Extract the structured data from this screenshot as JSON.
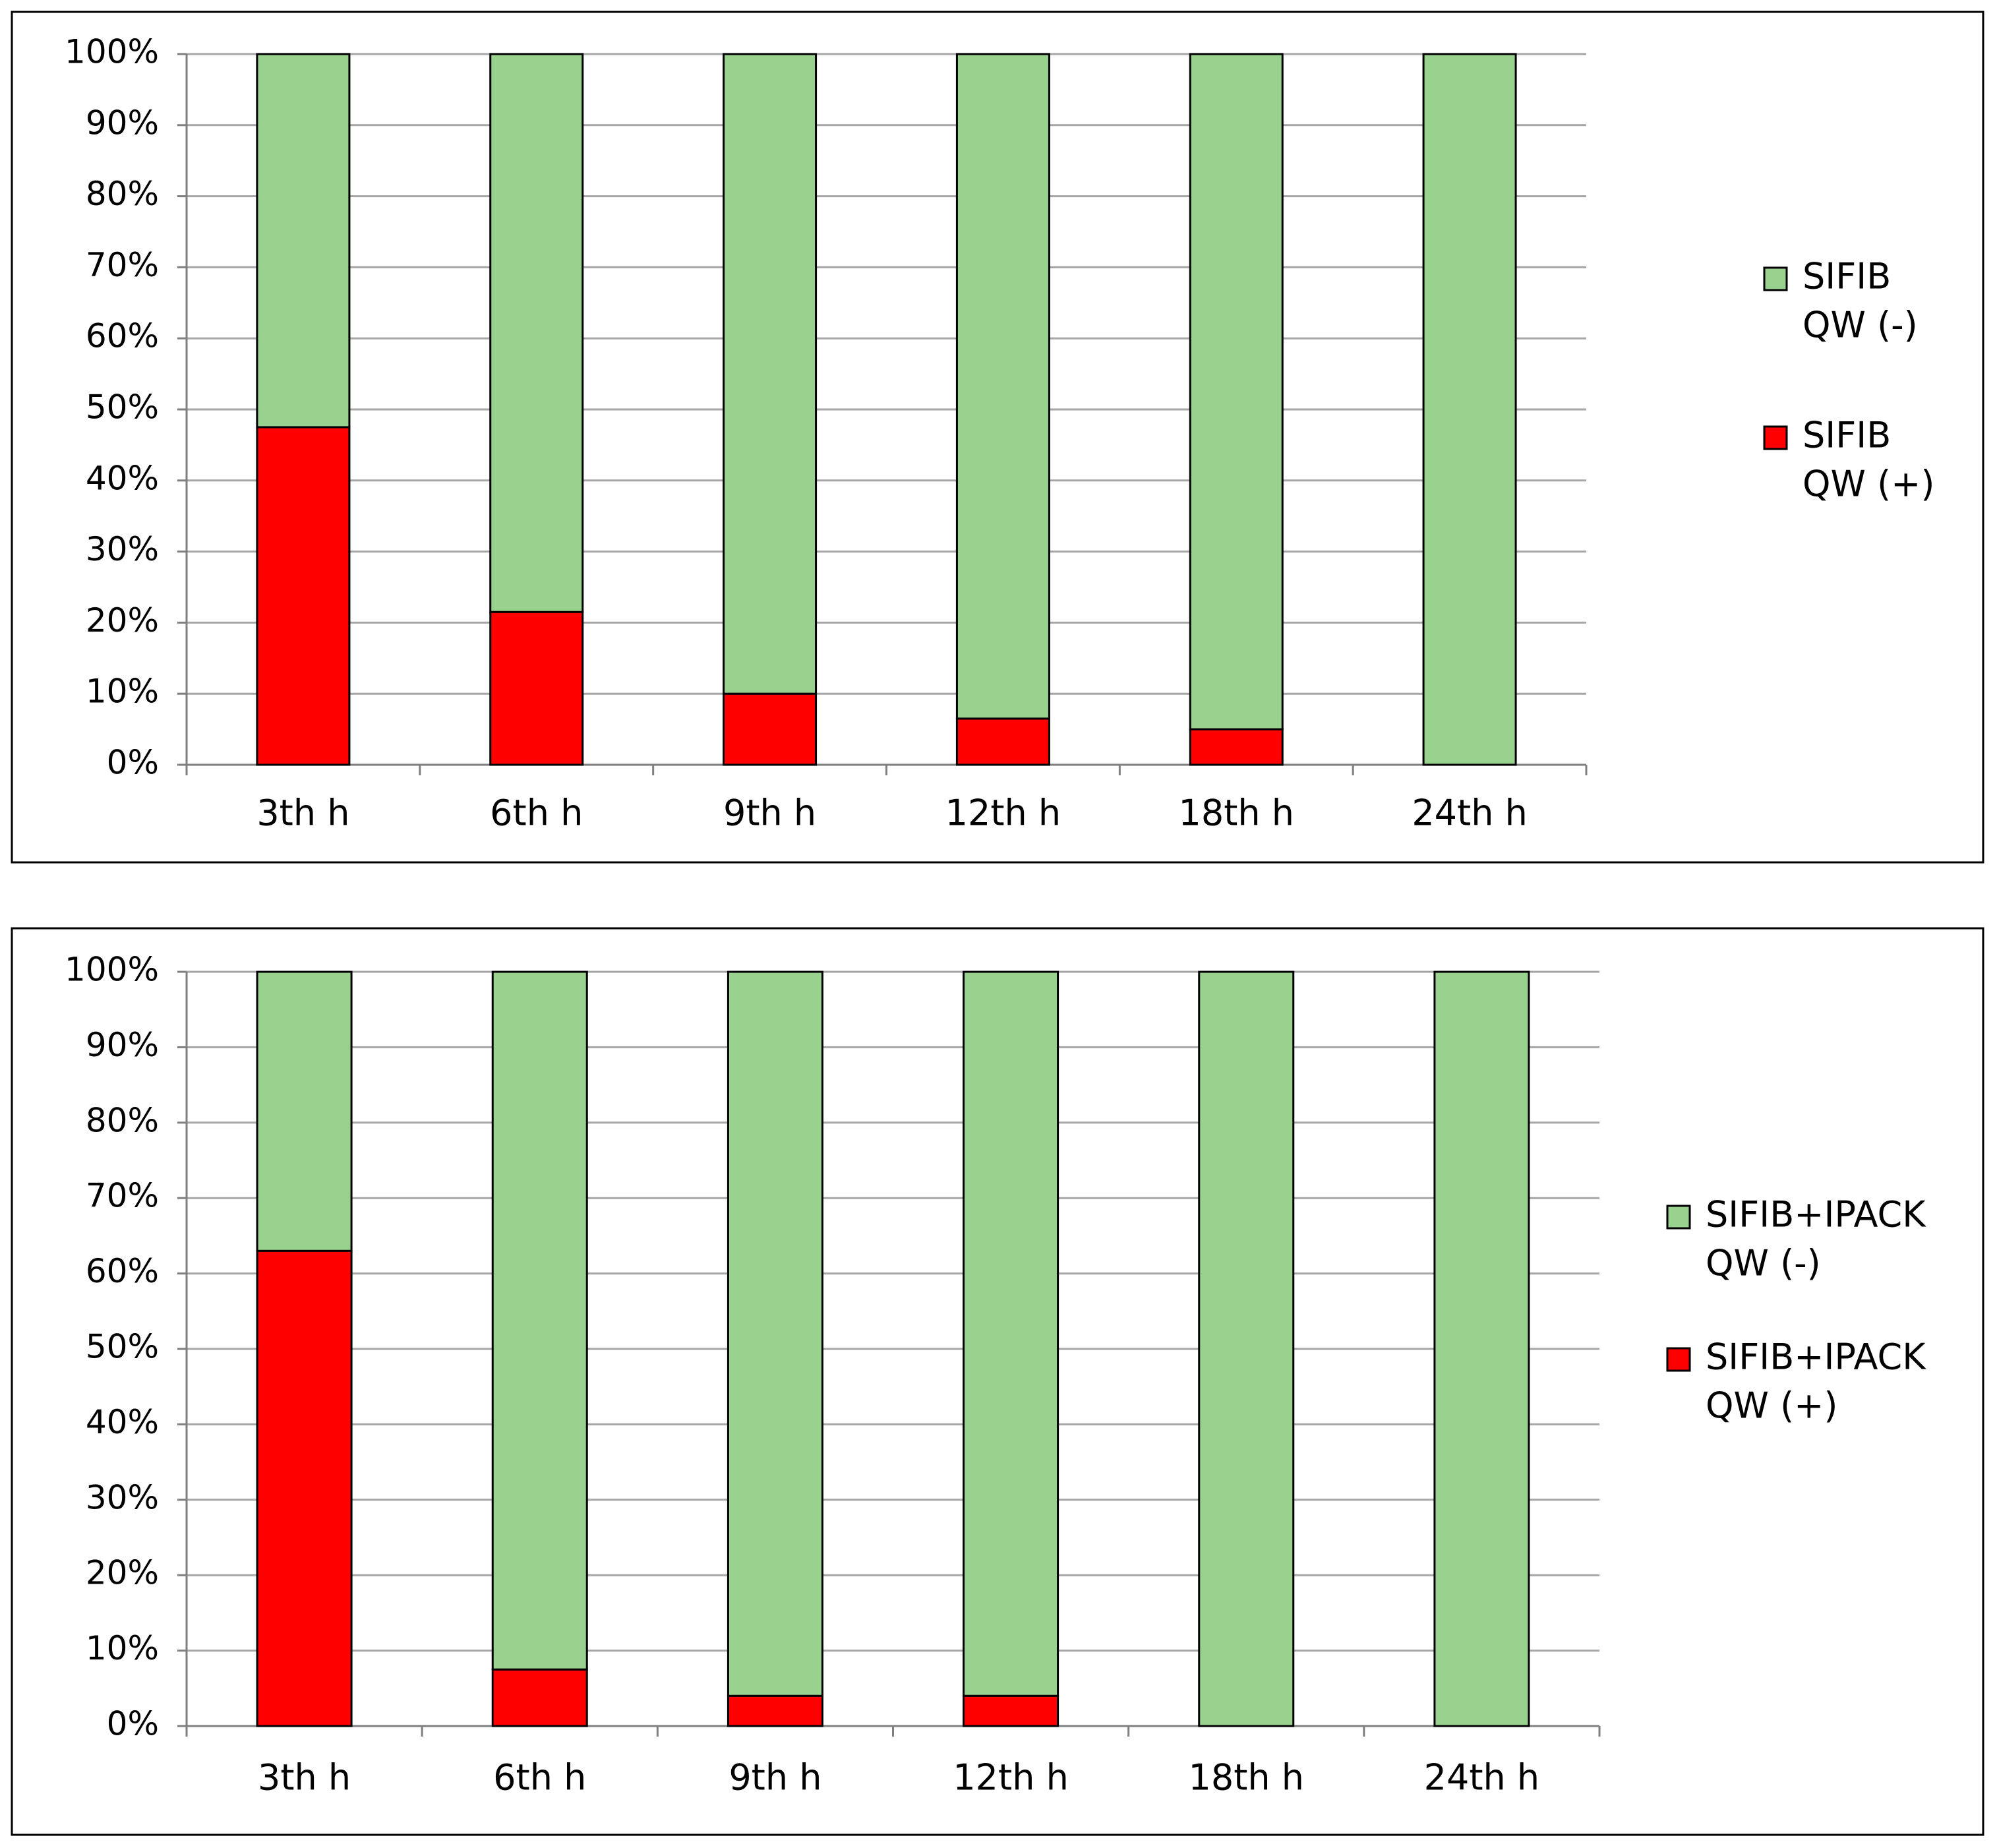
{
  "colors": {
    "negative": "#99d18f",
    "positive": "#ff0000"
  },
  "chart_data": [
    {
      "type": "bar",
      "stacked": true,
      "percent": true,
      "categories": [
        "3th h",
        "6th h",
        "9th h",
        "12th h",
        "18th h",
        "24th h"
      ],
      "yticks": [
        "0%",
        "10%",
        "20%",
        "30%",
        "40%",
        "50%",
        "60%",
        "70%",
        "80%",
        "90%",
        "100%"
      ],
      "ylim": [
        0,
        100
      ],
      "grid": true,
      "legend_position": "right",
      "series": [
        {
          "name": "SIFIB QW (+)",
          "legend_lines": [
            "SIFIB",
            "QW (+)"
          ],
          "color_key": "positive",
          "values": [
            47.5,
            21.5,
            10,
            6.5,
            5,
            0
          ]
        },
        {
          "name": "SIFIB QW (-)",
          "legend_lines": [
            "SIFIB",
            "QW (-)"
          ],
          "color_key": "negative",
          "values": [
            52.5,
            78.5,
            90,
            93.5,
            95,
            100
          ]
        }
      ]
    },
    {
      "type": "bar",
      "stacked": true,
      "percent": true,
      "categories": [
        "3th h",
        "6th h",
        "9th h",
        "12th h",
        "18th h",
        "24th h"
      ],
      "yticks": [
        "0%",
        "10%",
        "20%",
        "30%",
        "40%",
        "50%",
        "60%",
        "70%",
        "80%",
        "90%",
        "100%"
      ],
      "ylim": [
        0,
        100
      ],
      "grid": true,
      "legend_position": "right",
      "series": [
        {
          "name": "SIFIB+IPACK QW (+)",
          "legend_lines": [
            "SIFIB+IPACK",
            "QW (+)"
          ],
          "color_key": "positive",
          "values": [
            63,
            7.5,
            4,
            4,
            0,
            0
          ]
        },
        {
          "name": "SIFIB+IPACK QW (-)",
          "legend_lines": [
            "SIFIB+IPACK",
            "QW (-)"
          ],
          "color_key": "negative",
          "values": [
            37,
            92.5,
            96,
            96,
            100,
            100
          ]
        }
      ]
    }
  ]
}
